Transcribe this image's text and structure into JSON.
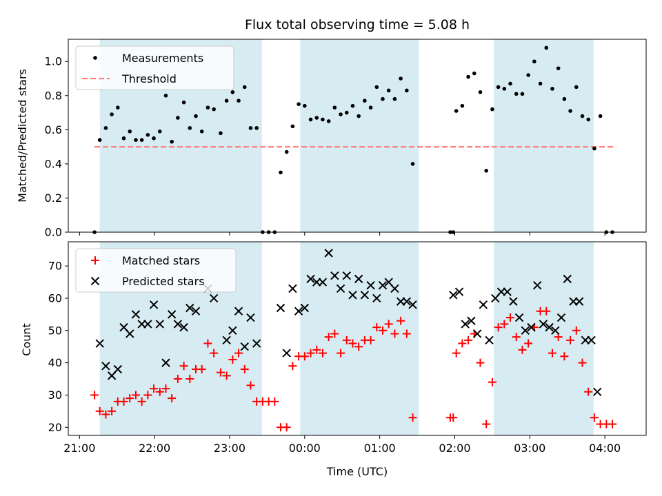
{
  "chart_data": {
    "title": "Flux total observing time = 5.08 h",
    "xlabel": "Time (UTC)",
    "x_unit": "hours_since_midnight_utc",
    "xlim": [
      -3.15,
      4.55
    ],
    "x_ticks": [
      {
        "value": -3,
        "label": "21:00"
      },
      {
        "value": -2,
        "label": "22:00"
      },
      {
        "value": -1,
        "label": "23:00"
      },
      {
        "value": 0,
        "label": "00:00"
      },
      {
        "value": 1,
        "label": "01:00"
      },
      {
        "value": 2,
        "label": "02:00"
      },
      {
        "value": 3,
        "label": "03:00"
      },
      {
        "value": 4,
        "label": "04:00"
      }
    ],
    "observing_windows": [
      {
        "start": -2.73,
        "end": -0.57
      },
      {
        "start": -0.06,
        "end": 1.52
      },
      {
        "start": 2.52,
        "end": 3.85
      }
    ],
    "top": {
      "type": "scatter",
      "ylabel": "Matched/Predicted stars",
      "ylim": [
        0,
        1.13
      ],
      "y_ticks": [
        0.0,
        0.2,
        0.4,
        0.6,
        0.8,
        1.0
      ],
      "y_tick_labels": [
        "0.0",
        "0.2",
        "0.4",
        "0.6",
        "0.8",
        "1.0"
      ],
      "legend": {
        "position": "top-left",
        "entries": [
          "Measurements",
          "Threshold"
        ]
      },
      "threshold": {
        "name": "Threshold",
        "value": 0.5,
        "x_range": [
          -2.8,
          4.15
        ],
        "color": "#ff7f7f"
      },
      "measurements": {
        "name": "Measurements",
        "color": "#000000",
        "points": [
          [
            -2.8,
            0.0
          ],
          [
            -2.73,
            0.54
          ],
          [
            -2.65,
            0.61
          ],
          [
            -2.57,
            0.69
          ],
          [
            -2.49,
            0.73
          ],
          [
            -2.41,
            0.55
          ],
          [
            -2.33,
            0.59
          ],
          [
            -2.25,
            0.54
          ],
          [
            -2.17,
            0.54
          ],
          [
            -2.09,
            0.57
          ],
          [
            -2.01,
            0.55
          ],
          [
            -1.93,
            0.59
          ],
          [
            -1.85,
            0.8
          ],
          [
            -1.77,
            0.53
          ],
          [
            -1.69,
            0.67
          ],
          [
            -1.61,
            0.76
          ],
          [
            -1.53,
            0.61
          ],
          [
            -1.45,
            0.68
          ],
          [
            -1.37,
            0.59
          ],
          [
            -1.29,
            0.73
          ],
          [
            -1.21,
            0.72
          ],
          [
            -1.12,
            0.58
          ],
          [
            -1.04,
            0.77
          ],
          [
            -0.96,
            0.82
          ],
          [
            -0.88,
            0.77
          ],
          [
            -0.8,
            0.85
          ],
          [
            -0.72,
            0.61
          ],
          [
            -0.64,
            0.61
          ],
          [
            -0.56,
            0.0
          ],
          [
            -0.48,
            0.0
          ],
          [
            -0.4,
            0.0
          ],
          [
            -0.32,
            0.35
          ],
          [
            -0.24,
            0.47
          ],
          [
            -0.16,
            0.62
          ],
          [
            -0.08,
            0.75
          ],
          [
            0.0,
            0.74
          ],
          [
            0.08,
            0.66
          ],
          [
            0.16,
            0.67
          ],
          [
            0.24,
            0.66
          ],
          [
            0.32,
            0.65
          ],
          [
            0.4,
            0.73
          ],
          [
            0.48,
            0.69
          ],
          [
            0.56,
            0.7
          ],
          [
            0.64,
            0.74
          ],
          [
            0.72,
            0.68
          ],
          [
            0.8,
            0.77
          ],
          [
            0.88,
            0.73
          ],
          [
            0.96,
            0.85
          ],
          [
            1.04,
            0.78
          ],
          [
            1.12,
            0.83
          ],
          [
            1.2,
            0.78
          ],
          [
            1.28,
            0.9
          ],
          [
            1.36,
            0.83
          ],
          [
            1.44,
            0.4
          ],
          [
            1.94,
            0.0
          ],
          [
            1.98,
            0.0
          ],
          [
            2.02,
            0.71
          ],
          [
            2.1,
            0.74
          ],
          [
            2.18,
            0.91
          ],
          [
            2.26,
            0.93
          ],
          [
            2.34,
            0.82
          ],
          [
            2.42,
            0.36
          ],
          [
            2.5,
            0.72
          ],
          [
            2.58,
            0.85
          ],
          [
            2.66,
            0.84
          ],
          [
            2.74,
            0.87
          ],
          [
            2.82,
            0.81
          ],
          [
            2.9,
            0.81
          ],
          [
            2.98,
            0.92
          ],
          [
            3.06,
            1.0
          ],
          [
            3.14,
            0.87
          ],
          [
            3.22,
            1.08
          ],
          [
            3.3,
            0.84
          ],
          [
            3.38,
            0.96
          ],
          [
            3.46,
            0.78
          ],
          [
            3.54,
            0.71
          ],
          [
            3.62,
            0.85
          ],
          [
            3.7,
            0.68
          ],
          [
            3.78,
            0.66
          ],
          [
            3.86,
            0.49
          ],
          [
            3.94,
            0.68
          ],
          [
            4.02,
            0.0
          ],
          [
            4.1,
            0.0
          ]
        ]
      }
    },
    "bottom": {
      "type": "scatter",
      "ylabel": "Count",
      "ylim": [
        17.5,
        77.5
      ],
      "y_ticks": [
        20,
        30,
        40,
        50,
        60,
        70
      ],
      "y_tick_labels": [
        "20",
        "30",
        "40",
        "50",
        "60",
        "70"
      ],
      "legend": {
        "position": "top-left",
        "entries": [
          "Matched stars",
          "Predicted stars"
        ]
      },
      "series": [
        {
          "name": "Matched stars",
          "marker": "plus",
          "color": "#ff0000",
          "points": [
            [
              -2.8,
              30
            ],
            [
              -2.73,
              25
            ],
            [
              -2.65,
              24
            ],
            [
              -2.57,
              25
            ],
            [
              -2.49,
              28
            ],
            [
              -2.41,
              28
            ],
            [
              -2.33,
              29
            ],
            [
              -2.25,
              30
            ],
            [
              -2.17,
              28
            ],
            [
              -2.09,
              30
            ],
            [
              -2.01,
              32
            ],
            [
              -1.93,
              31
            ],
            [
              -1.85,
              32
            ],
            [
              -1.77,
              29
            ],
            [
              -1.69,
              35
            ],
            [
              -1.61,
              39
            ],
            [
              -1.53,
              35
            ],
            [
              -1.45,
              38
            ],
            [
              -1.37,
              38
            ],
            [
              -1.29,
              46
            ],
            [
              -1.21,
              43
            ],
            [
              -1.12,
              37
            ],
            [
              -1.04,
              36
            ],
            [
              -0.96,
              41
            ],
            [
              -0.88,
              43
            ],
            [
              -0.8,
              38
            ],
            [
              -0.72,
              33
            ],
            [
              -0.64,
              28
            ],
            [
              -0.56,
              28
            ],
            [
              -0.48,
              28
            ],
            [
              -0.4,
              28
            ],
            [
              -0.32,
              20
            ],
            [
              -0.24,
              20
            ],
            [
              -0.16,
              39
            ],
            [
              -0.08,
              42
            ],
            [
              0.0,
              42
            ],
            [
              0.08,
              43
            ],
            [
              0.16,
              44
            ],
            [
              0.24,
              43
            ],
            [
              0.32,
              48
            ],
            [
              0.4,
              49
            ],
            [
              0.48,
              43
            ],
            [
              0.56,
              47
            ],
            [
              0.64,
              46
            ],
            [
              0.72,
              45
            ],
            [
              0.8,
              47
            ],
            [
              0.88,
              47
            ],
            [
              0.96,
              51
            ],
            [
              1.04,
              50
            ],
            [
              1.12,
              52
            ],
            [
              1.2,
              49
            ],
            [
              1.28,
              53
            ],
            [
              1.36,
              49
            ],
            [
              1.44,
              23
            ],
            [
              1.94,
              23
            ],
            [
              1.98,
              23
            ],
            [
              2.02,
              43
            ],
            [
              2.1,
              46
            ],
            [
              2.18,
              47
            ],
            [
              2.26,
              49
            ],
            [
              2.34,
              40
            ],
            [
              2.42,
              21
            ],
            [
              2.5,
              34
            ],
            [
              2.58,
              51
            ],
            [
              2.66,
              52
            ],
            [
              2.74,
              54
            ],
            [
              2.82,
              48
            ],
            [
              2.9,
              44
            ],
            [
              2.98,
              46
            ],
            [
              3.06,
              51
            ],
            [
              3.14,
              56
            ],
            [
              3.22,
              56
            ],
            [
              3.3,
              43
            ],
            [
              3.38,
              48
            ],
            [
              3.46,
              42
            ],
            [
              3.54,
              47
            ],
            [
              3.62,
              50
            ],
            [
              3.7,
              40
            ],
            [
              3.78,
              31
            ],
            [
              3.86,
              23
            ],
            [
              3.94,
              21
            ],
            [
              4.02,
              21
            ],
            [
              4.1,
              21
            ]
          ]
        },
        {
          "name": "Predicted stars",
          "marker": "x",
          "color": "#000000",
          "points": [
            [
              -2.73,
              46
            ],
            [
              -2.65,
              39
            ],
            [
              -2.57,
              36
            ],
            [
              -2.49,
              38
            ],
            [
              -2.41,
              51
            ],
            [
              -2.33,
              49
            ],
            [
              -2.25,
              55
            ],
            [
              -2.17,
              52
            ],
            [
              -2.09,
              52
            ],
            [
              -2.01,
              58
            ],
            [
              -1.93,
              52
            ],
            [
              -1.85,
              40
            ],
            [
              -1.77,
              55
            ],
            [
              -1.69,
              52
            ],
            [
              -1.61,
              51
            ],
            [
              -1.53,
              57
            ],
            [
              -1.45,
              56
            ],
            [
              -1.29,
              63
            ],
            [
              -1.21,
              60
            ],
            [
              -1.04,
              47
            ],
            [
              -0.96,
              50
            ],
            [
              -0.88,
              56
            ],
            [
              -0.8,
              45
            ],
            [
              -0.72,
              54
            ],
            [
              -0.64,
              46
            ],
            [
              -0.32,
              57
            ],
            [
              -0.24,
              43
            ],
            [
              -0.16,
              63
            ],
            [
              -0.08,
              56
            ],
            [
              0.0,
              57
            ],
            [
              0.08,
              66
            ],
            [
              0.16,
              65
            ],
            [
              0.24,
              65
            ],
            [
              0.32,
              74
            ],
            [
              0.4,
              67
            ],
            [
              0.48,
              63
            ],
            [
              0.56,
              67
            ],
            [
              0.64,
              61
            ],
            [
              0.72,
              66
            ],
            [
              0.8,
              61
            ],
            [
              0.88,
              64
            ],
            [
              0.96,
              60
            ],
            [
              1.04,
              64
            ],
            [
              1.12,
              65
            ],
            [
              1.2,
              63
            ],
            [
              1.28,
              59
            ],
            [
              1.36,
              59
            ],
            [
              1.44,
              58
            ],
            [
              1.98,
              61
            ],
            [
              2.06,
              62
            ],
            [
              2.14,
              52
            ],
            [
              2.22,
              53
            ],
            [
              2.3,
              49
            ],
            [
              2.38,
              58
            ],
            [
              2.46,
              47
            ],
            [
              2.54,
              60
            ],
            [
              2.62,
              62
            ],
            [
              2.7,
              62
            ],
            [
              2.78,
              59
            ],
            [
              2.86,
              54
            ],
            [
              2.94,
              50
            ],
            [
              3.02,
              51
            ],
            [
              3.1,
              64
            ],
            [
              3.18,
              52
            ],
            [
              3.26,
              51
            ],
            [
              3.34,
              50
            ],
            [
              3.42,
              54
            ],
            [
              3.5,
              66
            ],
            [
              3.58,
              59
            ],
            [
              3.66,
              59
            ],
            [
              3.74,
              47
            ],
            [
              3.82,
              47
            ],
            [
              3.9,
              31
            ]
          ]
        }
      ]
    }
  }
}
